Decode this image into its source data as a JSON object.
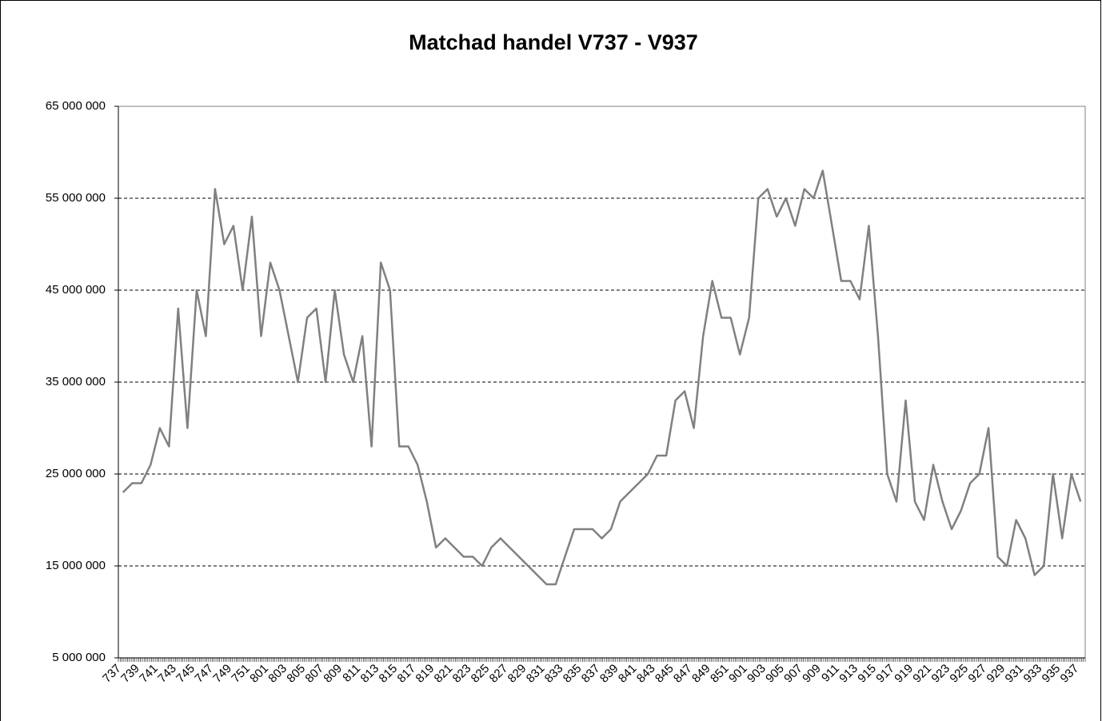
{
  "chart_data": {
    "type": "line",
    "title": "Matchad handel V737 - V937",
    "categories": [
      "737",
      null,
      "739",
      null,
      "741",
      null,
      "743",
      null,
      "745",
      null,
      "747",
      null,
      "749",
      null,
      "751",
      null,
      "801",
      null,
      "803",
      null,
      "805",
      null,
      "807",
      null,
      "809",
      null,
      "811",
      null,
      "813",
      null,
      "815",
      null,
      "817",
      null,
      "819",
      null,
      "821",
      null,
      "823",
      null,
      "825",
      null,
      "827",
      null,
      "829",
      null,
      "831",
      null,
      "833",
      null,
      "835",
      null,
      "837",
      null,
      "839",
      null,
      "841",
      null,
      "843",
      null,
      "845",
      null,
      "847",
      null,
      "849",
      null,
      "851",
      null,
      "901",
      null,
      "903",
      null,
      "905",
      null,
      "907",
      null,
      "909",
      null,
      "911",
      null,
      "913",
      null,
      "915",
      null,
      "917",
      null,
      "919",
      null,
      "921",
      null,
      "923",
      null,
      "925",
      null,
      "927",
      null,
      "929",
      null,
      "931",
      null,
      "933",
      null,
      "935",
      null,
      "937"
    ],
    "series": [
      {
        "name": "Matchad handel",
        "color": "#808080",
        "values": [
          23000000,
          24000000,
          24000000,
          26000000,
          30000000,
          28000000,
          43000000,
          30000000,
          45000000,
          40000000,
          56000000,
          50000000,
          52000000,
          45000000,
          53000000,
          40000000,
          48000000,
          45000000,
          40000000,
          35000000,
          42000000,
          43000000,
          35000000,
          45000000,
          38000000,
          35000000,
          40000000,
          28000000,
          48000000,
          45000000,
          28000000,
          28000000,
          26000000,
          22000000,
          17000000,
          18000000,
          17000000,
          16000000,
          16000000,
          15000000,
          17000000,
          18000000,
          17000000,
          16000000,
          15000000,
          14000000,
          13000000,
          13000000,
          16000000,
          19000000,
          19000000,
          19000000,
          18000000,
          19000000,
          22000000,
          23000000,
          24000000,
          25000000,
          27000000,
          27000000,
          33000000,
          34000000,
          30000000,
          40000000,
          46000000,
          42000000,
          42000000,
          38000000,
          42000000,
          55000000,
          56000000,
          53000000,
          55000000,
          52000000,
          56000000,
          55000000,
          58000000,
          52000000,
          46000000,
          46000000,
          44000000,
          52000000,
          40000000,
          25000000,
          22000000,
          33000000,
          22000000,
          20000000,
          26000000,
          22000000,
          19000000,
          21000000,
          24000000,
          25000000,
          30000000,
          16000000,
          15000000,
          20000000,
          18000000,
          14000000,
          15000000,
          25000000,
          18000000,
          25000000,
          22000000
        ]
      }
    ],
    "ylim": [
      5000000,
      65000000
    ],
    "yticks": [
      {
        "value": 5000000,
        "label": "5 000 000"
      },
      {
        "value": 15000000,
        "label": "15 000 000"
      },
      {
        "value": 25000000,
        "label": "25 000 000"
      },
      {
        "value": 35000000,
        "label": "35 000 000"
      },
      {
        "value": 45000000,
        "label": "45 000 000"
      },
      {
        "value": 55000000,
        "label": "55 000 000"
      },
      {
        "value": 65000000,
        "label": "65 000 000"
      }
    ],
    "grid": true
  }
}
